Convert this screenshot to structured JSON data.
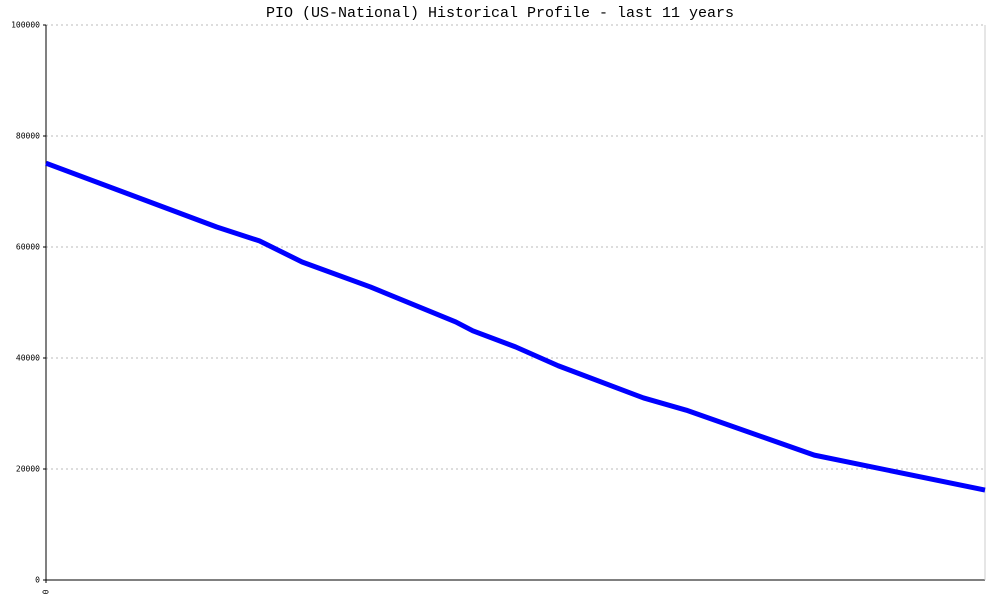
{
  "chart_data": {
    "type": "line",
    "title": "PIO (US-National) Historical Profile - last 11 years",
    "x": [
      0,
      2,
      2.5,
      3,
      3.8,
      4.8,
      5,
      5.5,
      6,
      7,
      7.5,
      8.5,
      9,
      11
    ],
    "series": [
      {
        "color": "#0000ff",
        "values": [
          75100,
          63600,
          61100,
          57300,
          52800,
          46500,
          44900,
          42000,
          38600,
          32800,
          30600,
          25200,
          22500,
          16200
        ]
      }
    ],
    "xlim": [
      0,
      11
    ],
    "xticks": [
      0
    ],
    "ylim": [
      0,
      100000
    ],
    "yticks": [
      0,
      20000,
      40000,
      60000,
      80000,
      100000
    ],
    "grid": true
  }
}
